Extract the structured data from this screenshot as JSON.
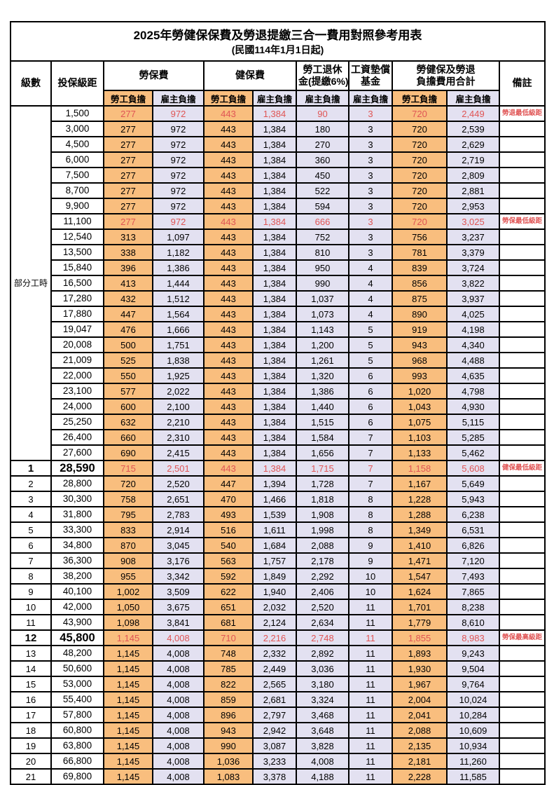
{
  "title": "2025年勞健保保費及勞退提繳三合一費用對照參考用表",
  "subtitle": "(民國114年1月1日起)",
  "colors": {
    "employee_bg": "#F9BE7E",
    "employer_bg": "#E3E1F1",
    "highlight_red": "#E05555"
  },
  "header": {
    "level": "級數",
    "bracket": "投保級距",
    "labor_insurance": "勞保費",
    "health_insurance": "健保費",
    "pension_line1": "勞工退休",
    "pension_line2": "金(提繳6%)",
    "wage_fund_line1": "工資墊償",
    "wage_fund_line2": "基金",
    "total_line1": "勞健保及勞退",
    "total_line2": "負擔費用合計",
    "remark": "備註",
    "employee": "勞工負擔",
    "employer": "雇主負擔"
  },
  "part_time_label": "部分工時",
  "part_time_rowspan": 23,
  "rows": [
    {
      "level": "",
      "bracket": "1,500",
      "values": [
        "277",
        "972",
        "443",
        "1,384",
        "90",
        "3",
        "720",
        "2,449"
      ],
      "remark": "勞退最低級距",
      "highlight": true,
      "big": false
    },
    {
      "level": "",
      "bracket": "3,000",
      "values": [
        "277",
        "972",
        "443",
        "1,384",
        "180",
        "3",
        "720",
        "2,539"
      ],
      "remark": "",
      "highlight": false,
      "big": false
    },
    {
      "level": "",
      "bracket": "4,500",
      "values": [
        "277",
        "972",
        "443",
        "1,384",
        "270",
        "3",
        "720",
        "2,629"
      ],
      "remark": "",
      "highlight": false,
      "big": false
    },
    {
      "level": "",
      "bracket": "6,000",
      "values": [
        "277",
        "972",
        "443",
        "1,384",
        "360",
        "3",
        "720",
        "2,719"
      ],
      "remark": "",
      "highlight": false,
      "big": false
    },
    {
      "level": "",
      "bracket": "7,500",
      "values": [
        "277",
        "972",
        "443",
        "1,384",
        "450",
        "3",
        "720",
        "2,809"
      ],
      "remark": "",
      "highlight": false,
      "big": false
    },
    {
      "level": "",
      "bracket": "8,700",
      "values": [
        "277",
        "972",
        "443",
        "1,384",
        "522",
        "3",
        "720",
        "2,881"
      ],
      "remark": "",
      "highlight": false,
      "big": false
    },
    {
      "level": "",
      "bracket": "9,900",
      "values": [
        "277",
        "972",
        "443",
        "1,384",
        "594",
        "3",
        "720",
        "2,953"
      ],
      "remark": "",
      "highlight": false,
      "big": false
    },
    {
      "level": "",
      "bracket": "11,100",
      "values": [
        "277",
        "972",
        "443",
        "1,384",
        "666",
        "3",
        "720",
        "3,025"
      ],
      "remark": "勞保最低級距",
      "highlight": true,
      "big": false
    },
    {
      "level": "",
      "bracket": "12,540",
      "values": [
        "313",
        "1,097",
        "443",
        "1,384",
        "752",
        "3",
        "756",
        "3,237"
      ],
      "remark": "",
      "highlight": false,
      "big": false
    },
    {
      "level": "",
      "bracket": "13,500",
      "values": [
        "338",
        "1,182",
        "443",
        "1,384",
        "810",
        "3",
        "781",
        "3,379"
      ],
      "remark": "",
      "highlight": false,
      "big": false
    },
    {
      "level": "",
      "bracket": "15,840",
      "values": [
        "396",
        "1,386",
        "443",
        "1,384",
        "950",
        "4",
        "839",
        "3,724"
      ],
      "remark": "",
      "highlight": false,
      "big": false
    },
    {
      "level": "",
      "bracket": "16,500",
      "values": [
        "413",
        "1,444",
        "443",
        "1,384",
        "990",
        "4",
        "856",
        "3,822"
      ],
      "remark": "",
      "highlight": false,
      "big": false
    },
    {
      "level": "",
      "bracket": "17,280",
      "values": [
        "432",
        "1,512",
        "443",
        "1,384",
        "1,037",
        "4",
        "875",
        "3,937"
      ],
      "remark": "",
      "highlight": false,
      "big": false
    },
    {
      "level": "",
      "bracket": "17,880",
      "values": [
        "447",
        "1,564",
        "443",
        "1,384",
        "1,073",
        "4",
        "890",
        "4,025"
      ],
      "remark": "",
      "highlight": false,
      "big": false
    },
    {
      "level": "",
      "bracket": "19,047",
      "values": [
        "476",
        "1,666",
        "443",
        "1,384",
        "1,143",
        "5",
        "919",
        "4,198"
      ],
      "remark": "",
      "highlight": false,
      "big": false
    },
    {
      "level": "",
      "bracket": "20,008",
      "values": [
        "500",
        "1,751",
        "443",
        "1,384",
        "1,200",
        "5",
        "943",
        "4,340"
      ],
      "remark": "",
      "highlight": false,
      "big": false
    },
    {
      "level": "",
      "bracket": "21,009",
      "values": [
        "525",
        "1,838",
        "443",
        "1,384",
        "1,261",
        "5",
        "968",
        "4,488"
      ],
      "remark": "",
      "highlight": false,
      "big": false
    },
    {
      "level": "",
      "bracket": "22,000",
      "values": [
        "550",
        "1,925",
        "443",
        "1,384",
        "1,320",
        "6",
        "993",
        "4,635"
      ],
      "remark": "",
      "highlight": false,
      "big": false
    },
    {
      "level": "",
      "bracket": "23,100",
      "values": [
        "577",
        "2,022",
        "443",
        "1,384",
        "1,386",
        "6",
        "1,020",
        "4,798"
      ],
      "remark": "",
      "highlight": false,
      "big": false
    },
    {
      "level": "",
      "bracket": "24,000",
      "values": [
        "600",
        "2,100",
        "443",
        "1,384",
        "1,440",
        "6",
        "1,043",
        "4,930"
      ],
      "remark": "",
      "highlight": false,
      "big": false
    },
    {
      "level": "",
      "bracket": "25,250",
      "values": [
        "632",
        "2,210",
        "443",
        "1,384",
        "1,515",
        "6",
        "1,075",
        "5,115"
      ],
      "remark": "",
      "highlight": false,
      "big": false
    },
    {
      "level": "",
      "bracket": "26,400",
      "values": [
        "660",
        "2,310",
        "443",
        "1,384",
        "1,584",
        "7",
        "1,103",
        "5,285"
      ],
      "remark": "",
      "highlight": false,
      "big": false
    },
    {
      "level": "",
      "bracket": "27,600",
      "values": [
        "690",
        "2,415",
        "443",
        "1,384",
        "1,656",
        "7",
        "1,133",
        "5,462"
      ],
      "remark": "",
      "highlight": false,
      "big": false
    },
    {
      "level": "1",
      "bracket": "28,590",
      "values": [
        "715",
        "2,501",
        "443",
        "1,384",
        "1,715",
        "7",
        "1,158",
        "5,608"
      ],
      "remark": "健保最低級距",
      "highlight": true,
      "big": true
    },
    {
      "level": "2",
      "bracket": "28,800",
      "values": [
        "720",
        "2,520",
        "447",
        "1,394",
        "1,728",
        "7",
        "1,167",
        "5,649"
      ],
      "remark": "",
      "highlight": false,
      "big": false
    },
    {
      "level": "3",
      "bracket": "30,300",
      "values": [
        "758",
        "2,651",
        "470",
        "1,466",
        "1,818",
        "8",
        "1,228",
        "5,943"
      ],
      "remark": "",
      "highlight": false,
      "big": false
    },
    {
      "level": "4",
      "bracket": "31,800",
      "values": [
        "795",
        "2,783",
        "493",
        "1,539",
        "1,908",
        "8",
        "1,288",
        "6,238"
      ],
      "remark": "",
      "highlight": false,
      "big": false
    },
    {
      "level": "5",
      "bracket": "33,300",
      "values": [
        "833",
        "2,914",
        "516",
        "1,611",
        "1,998",
        "8",
        "1,349",
        "6,531"
      ],
      "remark": "",
      "highlight": false,
      "big": false
    },
    {
      "level": "6",
      "bracket": "34,800",
      "values": [
        "870",
        "3,045",
        "540",
        "1,684",
        "2,088",
        "9",
        "1,410",
        "6,826"
      ],
      "remark": "",
      "highlight": false,
      "big": false
    },
    {
      "level": "7",
      "bracket": "36,300",
      "values": [
        "908",
        "3,176",
        "563",
        "1,757",
        "2,178",
        "9",
        "1,471",
        "7,120"
      ],
      "remark": "",
      "highlight": false,
      "big": false
    },
    {
      "level": "8",
      "bracket": "38,200",
      "values": [
        "955",
        "3,342",
        "592",
        "1,849",
        "2,292",
        "10",
        "1,547",
        "7,493"
      ],
      "remark": "",
      "highlight": false,
      "big": false
    },
    {
      "level": "9",
      "bracket": "40,100",
      "values": [
        "1,002",
        "3,509",
        "622",
        "1,940",
        "2,406",
        "10",
        "1,624",
        "7,865"
      ],
      "remark": "",
      "highlight": false,
      "big": false
    },
    {
      "level": "10",
      "bracket": "42,000",
      "values": [
        "1,050",
        "3,675",
        "651",
        "2,032",
        "2,520",
        "11",
        "1,701",
        "8,238"
      ],
      "remark": "",
      "highlight": false,
      "big": false
    },
    {
      "level": "11",
      "bracket": "43,900",
      "values": [
        "1,098",
        "3,841",
        "681",
        "2,124",
        "2,634",
        "11",
        "1,779",
        "8,610"
      ],
      "remark": "",
      "highlight": false,
      "big": false
    },
    {
      "level": "12",
      "bracket": "45,800",
      "values": [
        "1,145",
        "4,008",
        "710",
        "2,216",
        "2,748",
        "11",
        "1,855",
        "8,983"
      ],
      "remark": "勞保最高級距",
      "highlight": true,
      "big": true
    },
    {
      "level": "13",
      "bracket": "48,200",
      "values": [
        "1,145",
        "4,008",
        "748",
        "2,332",
        "2,892",
        "11",
        "1,893",
        "9,243"
      ],
      "remark": "",
      "highlight": false,
      "big": false
    },
    {
      "level": "14",
      "bracket": "50,600",
      "values": [
        "1,145",
        "4,008",
        "785",
        "2,449",
        "3,036",
        "11",
        "1,930",
        "9,504"
      ],
      "remark": "",
      "highlight": false,
      "big": false
    },
    {
      "level": "15",
      "bracket": "53,000",
      "values": [
        "1,145",
        "4,008",
        "822",
        "2,565",
        "3,180",
        "11",
        "1,967",
        "9,764"
      ],
      "remark": "",
      "highlight": false,
      "big": false
    },
    {
      "level": "16",
      "bracket": "55,400",
      "values": [
        "1,145",
        "4,008",
        "859",
        "2,681",
        "3,324",
        "11",
        "2,004",
        "10,024"
      ],
      "remark": "",
      "highlight": false,
      "big": false
    },
    {
      "level": "17",
      "bracket": "57,800",
      "values": [
        "1,145",
        "4,008",
        "896",
        "2,797",
        "3,468",
        "11",
        "2,041",
        "10,284"
      ],
      "remark": "",
      "highlight": false,
      "big": false
    },
    {
      "level": "18",
      "bracket": "60,800",
      "values": [
        "1,145",
        "4,008",
        "943",
        "2,942",
        "3,648",
        "11",
        "2,088",
        "10,609"
      ],
      "remark": "",
      "highlight": false,
      "big": false
    },
    {
      "level": "19",
      "bracket": "63,800",
      "values": [
        "1,145",
        "4,008",
        "990",
        "3,087",
        "3,828",
        "11",
        "2,135",
        "10,934"
      ],
      "remark": "",
      "highlight": false,
      "big": false
    },
    {
      "level": "20",
      "bracket": "66,800",
      "values": [
        "1,145",
        "4,008",
        "1,036",
        "3,233",
        "4,008",
        "11",
        "2,181",
        "11,260"
      ],
      "remark": "",
      "highlight": false,
      "big": false
    },
    {
      "level": "21",
      "bracket": "69,800",
      "values": [
        "1,145",
        "4,008",
        "1,083",
        "3,378",
        "4,188",
        "11",
        "2,228",
        "11,585"
      ],
      "remark": "",
      "highlight": false,
      "big": false
    }
  ]
}
